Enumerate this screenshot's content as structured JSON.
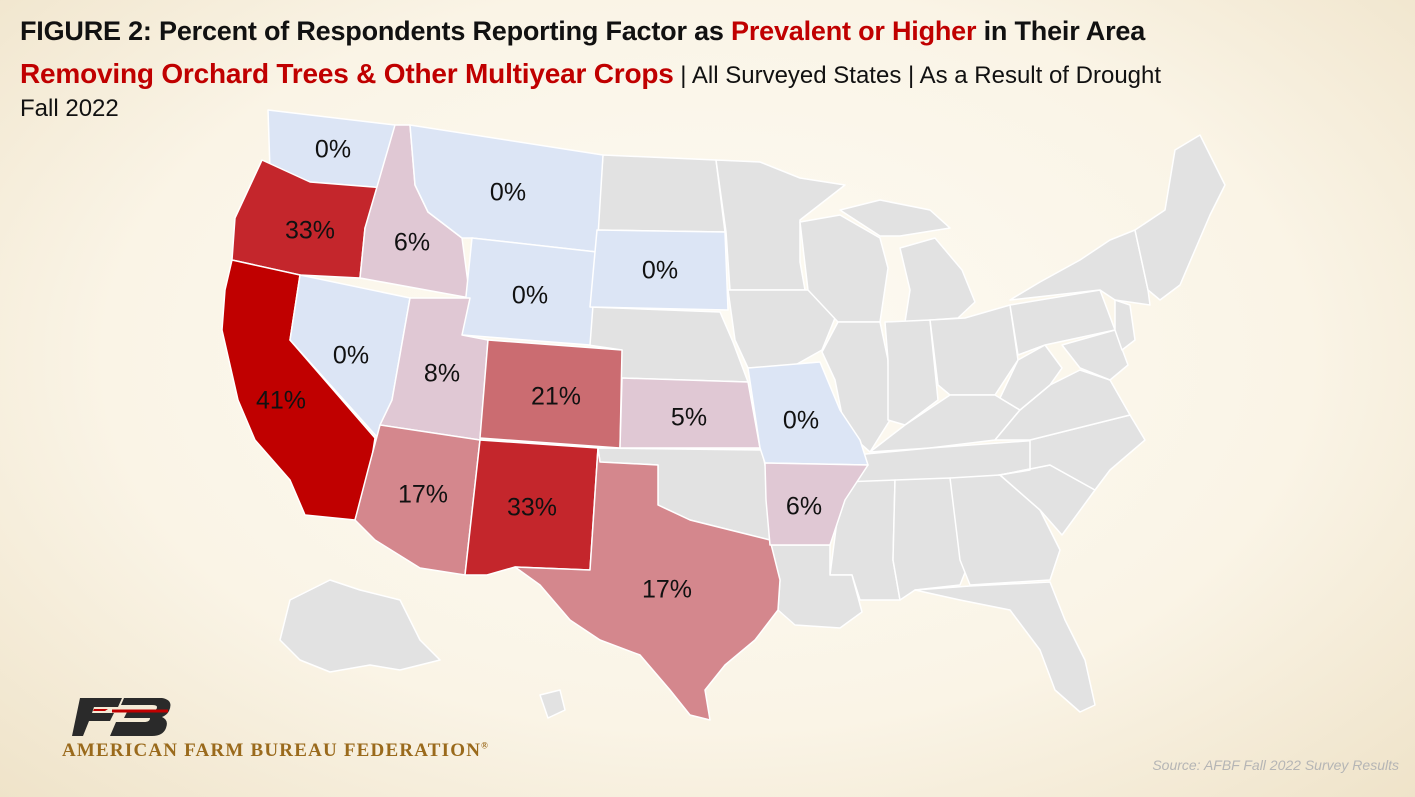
{
  "title": {
    "prefix": "FIGURE 2: Percent of Respondents Reporting Factor as ",
    "highlight": "Prevalent or Higher",
    "suffix": " in Their Area"
  },
  "subtitle": {
    "main": "Removing Orchard Trees & Other Multiyear Crops",
    "rest": " | All Surveyed States | As a Result of Drought"
  },
  "date": "Fall 2022",
  "map_data": {
    "colors": {
      "no_data": "#e2e2e2",
      "zero": "#dce5f5",
      "low": "#e0c8d4",
      "medium": "#d4878d",
      "medium_high": "#cb6c71",
      "high": "#c4262c",
      "highest": "#c00000",
      "highlight_text": "#c00000"
    },
    "states": [
      {
        "name": "Washington",
        "label": "0%",
        "value": 0,
        "color_key": "zero"
      },
      {
        "name": "Oregon",
        "label": "33%",
        "value": 33,
        "color_key": "high"
      },
      {
        "name": "California",
        "label": "41%",
        "value": 41,
        "color_key": "highest"
      },
      {
        "name": "Idaho",
        "label": "6%",
        "value": 6,
        "color_key": "low"
      },
      {
        "name": "Nevada",
        "label": "0%",
        "value": 0,
        "color_key": "zero"
      },
      {
        "name": "Montana",
        "label": "0%",
        "value": 0,
        "color_key": "zero"
      },
      {
        "name": "Wyoming",
        "label": "0%",
        "value": 0,
        "color_key": "zero"
      },
      {
        "name": "South Dakota",
        "label": "0%",
        "value": 0,
        "color_key": "zero"
      },
      {
        "name": "Utah",
        "label": "8%",
        "value": 8,
        "color_key": "low"
      },
      {
        "name": "Colorado",
        "label": "21%",
        "value": 21,
        "color_key": "medium_high"
      },
      {
        "name": "Kansas",
        "label": "5%",
        "value": 5,
        "color_key": "low"
      },
      {
        "name": "Missouri",
        "label": "0%",
        "value": 0,
        "color_key": "zero"
      },
      {
        "name": "Arizona",
        "label": "17%",
        "value": 17,
        "color_key": "medium"
      },
      {
        "name": "New Mexico",
        "label": "33%",
        "value": 33,
        "color_key": "high"
      },
      {
        "name": "Texas",
        "label": "17%",
        "value": 17,
        "color_key": "medium"
      },
      {
        "name": "Arkansas",
        "label": "6%",
        "value": 6,
        "color_key": "low"
      }
    ]
  },
  "logo": {
    "mark": "FB",
    "text": "AMERICAN FARM BUREAU FEDERATION",
    "registered": "®"
  },
  "source": "Source: AFBF Fall 2022 Survey Results"
}
